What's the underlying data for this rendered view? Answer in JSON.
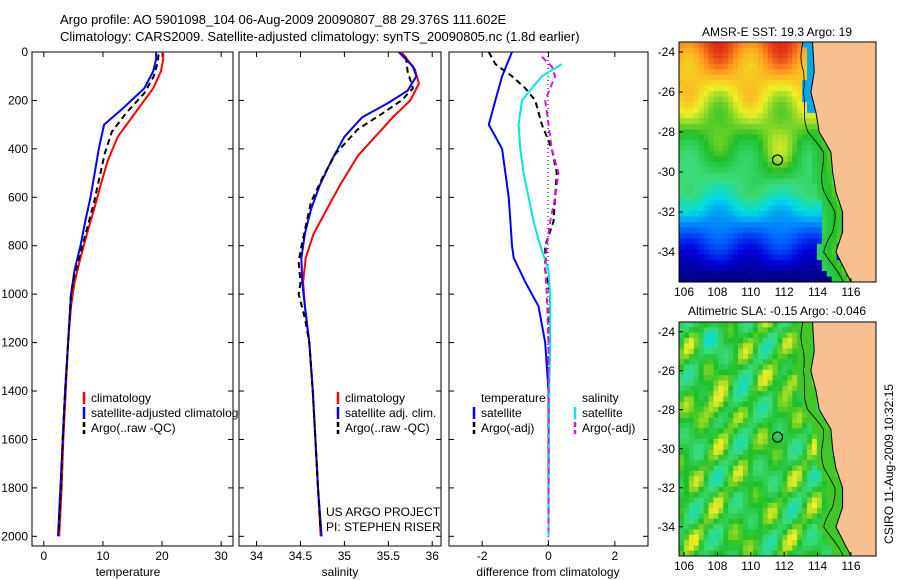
{
  "header": {
    "line1": "Argo profile: AO 5901098_104 06-Aug-2009 20090807_88 29.376S 111.602E",
    "line2": "Climatology: CARS2009. Satellite-adjusted climatology: synTS_20090805.nc (1.8d earlier)"
  },
  "colors": {
    "climatology": "#ff0000",
    "satellite": "#0000ff",
    "argo": "#000000",
    "cyan": "#00e5e5",
    "magenta": "#e010e0",
    "land": "#f8c090",
    "coast": "#000000"
  },
  "chart_data": [
    {
      "type": "line",
      "xlabel": "temperature",
      "ylabel": "",
      "xlim": [
        -2,
        32
      ],
      "ylim": [
        2040,
        0
      ],
      "xticks": [
        0,
        10,
        20,
        30
      ],
      "yticks": [
        0,
        200,
        400,
        600,
        800,
        1000,
        1200,
        1400,
        1600,
        1800,
        2000
      ],
      "legend": [
        "climatology",
        "satellite-adjusted climatology",
        "Argo(..raw -QC)"
      ],
      "series": [
        {
          "name": "climatology",
          "color": "#ff0000",
          "style": "solid",
          "points": [
            [
              20.2,
              0
            ],
            [
              20.2,
              30
            ],
            [
              19.8,
              80
            ],
            [
              18.5,
              150
            ],
            [
              15.5,
              250
            ],
            [
              12.5,
              350
            ],
            [
              10.8,
              450
            ],
            [
              9.6,
              550
            ],
            [
              8.5,
              650
            ],
            [
              7.3,
              750
            ],
            [
              6.2,
              850
            ],
            [
              5.2,
              950
            ],
            [
              4.6,
              1050
            ],
            [
              4.1,
              1200
            ],
            [
              3.7,
              1400
            ],
            [
              3.3,
              1600
            ],
            [
              3.0,
              1800
            ],
            [
              2.6,
              2000
            ]
          ]
        },
        {
          "name": "satellite-adjusted climatology",
          "color": "#0000ff",
          "style": "solid",
          "points": [
            [
              19.0,
              0
            ],
            [
              19.0,
              30
            ],
            [
              18.5,
              80
            ],
            [
              17.0,
              150
            ],
            [
              13.5,
              230
            ],
            [
              10.2,
              300
            ],
            [
              9.3,
              400
            ],
            [
              8.6,
              500
            ],
            [
              7.9,
              600
            ],
            [
              7.0,
              700
            ],
            [
              6.2,
              800
            ],
            [
              5.2,
              900
            ],
            [
              4.6,
              1000
            ],
            [
              4.1,
              1200
            ],
            [
              3.6,
              1400
            ],
            [
              3.2,
              1600
            ],
            [
              2.8,
              1800
            ],
            [
              2.4,
              2000
            ]
          ]
        },
        {
          "name": "Argo(..raw -QC)",
          "color": "#000000",
          "style": "dashed",
          "points": [
            [
              19.4,
              10
            ],
            [
              19.3,
              40
            ],
            [
              18.6,
              100
            ],
            [
              17.0,
              170
            ],
            [
              14.0,
              250
            ],
            [
              11.5,
              330
            ],
            [
              10.3,
              420
            ],
            [
              9.4,
              520
            ],
            [
              8.5,
              620
            ],
            [
              7.4,
              720
            ],
            [
              6.3,
              820
            ],
            [
              5.2,
              920
            ],
            [
              4.6,
              1000
            ],
            [
              4.1,
              1200
            ],
            [
              3.6,
              1400
            ],
            [
              3.2,
              1600
            ],
            [
              2.9,
              1800
            ],
            [
              2.5,
              1980
            ]
          ]
        }
      ]
    },
    {
      "type": "line",
      "xlabel": "salinity",
      "ylabel": "",
      "xlim": [
        33.8,
        36.1
      ],
      "ylim": [
        2040,
        0
      ],
      "xticks": [
        34,
        34.5,
        35,
        35.5,
        36
      ],
      "legend": [
        "climatology",
        "satellite adj. clim.",
        "Argo(..raw -QC)"
      ],
      "annotations": [
        "US ARGO PROJECT",
        "PI: STEPHEN RISER"
      ],
      "series": [
        {
          "name": "climatology",
          "color": "#ff0000",
          "style": "solid",
          "points": [
            [
              35.65,
              0
            ],
            [
              35.8,
              70
            ],
            [
              35.85,
              130
            ],
            [
              35.75,
              200
            ],
            [
              35.55,
              270
            ],
            [
              35.35,
              350
            ],
            [
              35.15,
              430
            ],
            [
              34.95,
              550
            ],
            [
              34.8,
              650
            ],
            [
              34.65,
              750
            ],
            [
              34.56,
              850
            ],
            [
              34.53,
              950
            ],
            [
              34.55,
              1050
            ],
            [
              34.6,
              1200
            ],
            [
              34.64,
              1400
            ],
            [
              34.67,
              1600
            ],
            [
              34.7,
              1800
            ],
            [
              34.73,
              2000
            ]
          ]
        },
        {
          "name": "satellite adj. clim.",
          "color": "#0000ff",
          "style": "solid",
          "points": [
            [
              35.62,
              0
            ],
            [
              35.78,
              60
            ],
            [
              35.82,
              100
            ],
            [
              35.72,
              160
            ],
            [
              35.5,
              210
            ],
            [
              35.2,
              270
            ],
            [
              35.0,
              350
            ],
            [
              34.85,
              450
            ],
            [
              34.72,
              550
            ],
            [
              34.62,
              650
            ],
            [
              34.55,
              750
            ],
            [
              34.51,
              850
            ],
            [
              34.52,
              950
            ],
            [
              34.55,
              1050
            ],
            [
              34.6,
              1200
            ],
            [
              34.64,
              1400
            ],
            [
              34.67,
              1600
            ],
            [
              34.7,
              1800
            ],
            [
              34.74,
              2000
            ]
          ]
        },
        {
          "name": "Argo(..raw -QC)",
          "color": "#000000",
          "style": "dashed",
          "points": [
            [
              35.7,
              20
            ],
            [
              35.72,
              80
            ],
            [
              35.78,
              150
            ],
            [
              35.65,
              200
            ],
            [
              35.45,
              250
            ],
            [
              35.15,
              320
            ],
            [
              34.9,
              420
            ],
            [
              34.75,
              520
            ],
            [
              34.62,
              620
            ],
            [
              34.56,
              720
            ],
            [
              34.5,
              820
            ],
            [
              34.48,
              870
            ],
            [
              34.5,
              950
            ],
            [
              34.48,
              1000
            ],
            [
              34.55,
              1100
            ],
            [
              34.6,
              1200
            ],
            [
              34.64,
              1400
            ],
            [
              34.67,
              1600
            ],
            [
              34.7,
              1800
            ],
            [
              34.73,
              1980
            ]
          ]
        }
      ]
    },
    {
      "type": "line",
      "xlabel": "difference from climatology",
      "ylabel": "",
      "xlim": [
        -3,
        3
      ],
      "ylim": [
        2040,
        0
      ],
      "xticks": [
        -2,
        0,
        2
      ],
      "legend_groups": [
        {
          "title": "temperature",
          "items": [
            "satellite",
            "Argo(-adj)"
          ]
        },
        {
          "title": "salinity",
          "items": [
            "satellite",
            "Argo(-adj)"
          ]
        }
      ],
      "series": [
        {
          "name": "temperature satellite",
          "color": "#0000ff",
          "style": "solid",
          "points": [
            [
              -1.1,
              0
            ],
            [
              -1.4,
              100
            ],
            [
              -1.6,
              200
            ],
            [
              -1.8,
              300
            ],
            [
              -1.4,
              400
            ],
            [
              -1.3,
              500
            ],
            [
              -1.2,
              600
            ],
            [
              -1.15,
              700
            ],
            [
              -1.1,
              800
            ],
            [
              -1.05,
              850
            ],
            [
              -0.7,
              950
            ],
            [
              -0.3,
              1050
            ],
            [
              -0.1,
              1200
            ],
            [
              0,
              1400
            ],
            [
              0,
              2000
            ]
          ]
        },
        {
          "name": "temperature Argo(-adj)",
          "color": "#000000",
          "style": "dashed",
          "points": [
            [
              -1.8,
              0
            ],
            [
              -1.6,
              50
            ],
            [
              -1.1,
              100
            ],
            [
              -0.7,
              150
            ],
            [
              -0.4,
              200
            ],
            [
              -0.2,
              300
            ],
            [
              0.1,
              400
            ],
            [
              0.25,
              500
            ],
            [
              0.2,
              600
            ],
            [
              0.15,
              700
            ],
            [
              -0.1,
              800
            ],
            [
              -0.1,
              900
            ],
            [
              0.05,
              1000
            ],
            [
              0,
              1200
            ],
            [
              0,
              2000
            ]
          ]
        },
        {
          "name": "salinity satellite",
          "color": "#00e5e5",
          "style": "solid",
          "points": [
            [
              0.4,
              50
            ],
            [
              -0.2,
              100
            ],
            [
              -0.5,
              150
            ],
            [
              -0.8,
              200
            ],
            [
              -0.9,
              300
            ],
            [
              -0.85,
              400
            ],
            [
              -0.75,
              500
            ],
            [
              -0.6,
              600
            ],
            [
              -0.45,
              700
            ],
            [
              -0.25,
              800
            ],
            [
              0,
              900
            ],
            [
              0.05,
              1000
            ],
            [
              0.05,
              1200
            ],
            [
              0.02,
              1400
            ],
            [
              0,
              2000
            ]
          ]
        },
        {
          "name": "salinity Argo(-adj)",
          "color": "#e010e0",
          "style": "dashed",
          "points": [
            [
              -0.2,
              20
            ],
            [
              0.1,
              60
            ],
            [
              0.2,
              100
            ],
            [
              0.05,
              150
            ],
            [
              -0.1,
              200
            ],
            [
              0,
              300
            ],
            [
              0.1,
              400
            ],
            [
              0.3,
              500
            ],
            [
              0.2,
              600
            ],
            [
              0.05,
              700
            ],
            [
              -0.05,
              800
            ],
            [
              -0.1,
              900
            ],
            [
              -0.05,
              1000
            ],
            [
              0,
              1200
            ],
            [
              0,
              1980
            ]
          ]
        }
      ]
    },
    {
      "type": "heatmap",
      "title": "AMSR-E SST: 19.3  Argo: 19",
      "xticks": [
        106,
        108,
        110,
        112,
        114,
        116
      ],
      "yticks": [
        -24,
        -26,
        -28,
        -30,
        -32,
        -34
      ],
      "xlim": [
        105.7,
        117.5
      ],
      "ylim": [
        -35.5,
        -23.5
      ],
      "argo_position": [
        111.6,
        -29.4
      ]
    },
    {
      "type": "heatmap",
      "title": "Altimetric SLA: -0.15  Argo: -0.046",
      "xticks": [
        106,
        108,
        110,
        112,
        114,
        116
      ],
      "yticks": [
        -24,
        -26,
        -28,
        -30,
        -32,
        -34
      ],
      "xlim": [
        105.7,
        117.5
      ],
      "ylim": [
        -35.5,
        -23.5
      ],
      "argo_position": [
        111.6,
        -29.4
      ]
    }
  ],
  "credit": "CSIRO 11-Aug-2009 10:32:15"
}
